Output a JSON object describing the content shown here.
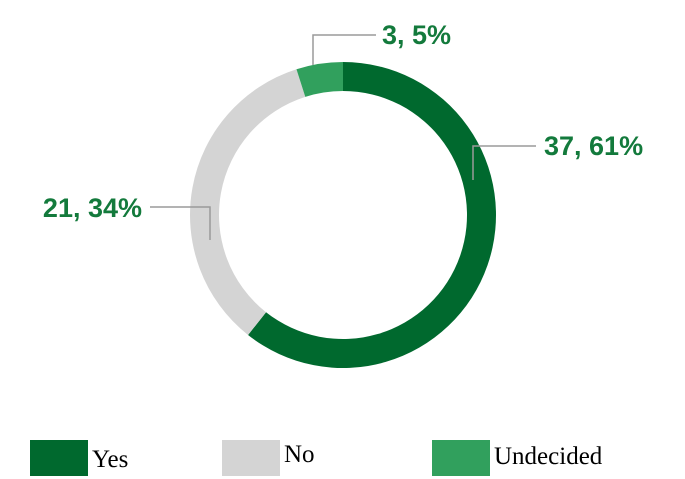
{
  "chart_data": {
    "type": "pie",
    "variant": "donut",
    "categories": [
      "Yes",
      "No",
      "Undecided"
    ],
    "values": [
      37,
      21,
      3
    ],
    "percentages": [
      61,
      34,
      5
    ],
    "data_labels": [
      "37, 61%",
      "21, 34%",
      "3, 5%"
    ],
    "colors": [
      "#00692e",
      "#d4d4d4",
      "#31a05d"
    ],
    "label_color": "#137a3c",
    "legend": {
      "position": "bottom",
      "entries": [
        "Yes",
        "No",
        "Undecided"
      ]
    }
  }
}
